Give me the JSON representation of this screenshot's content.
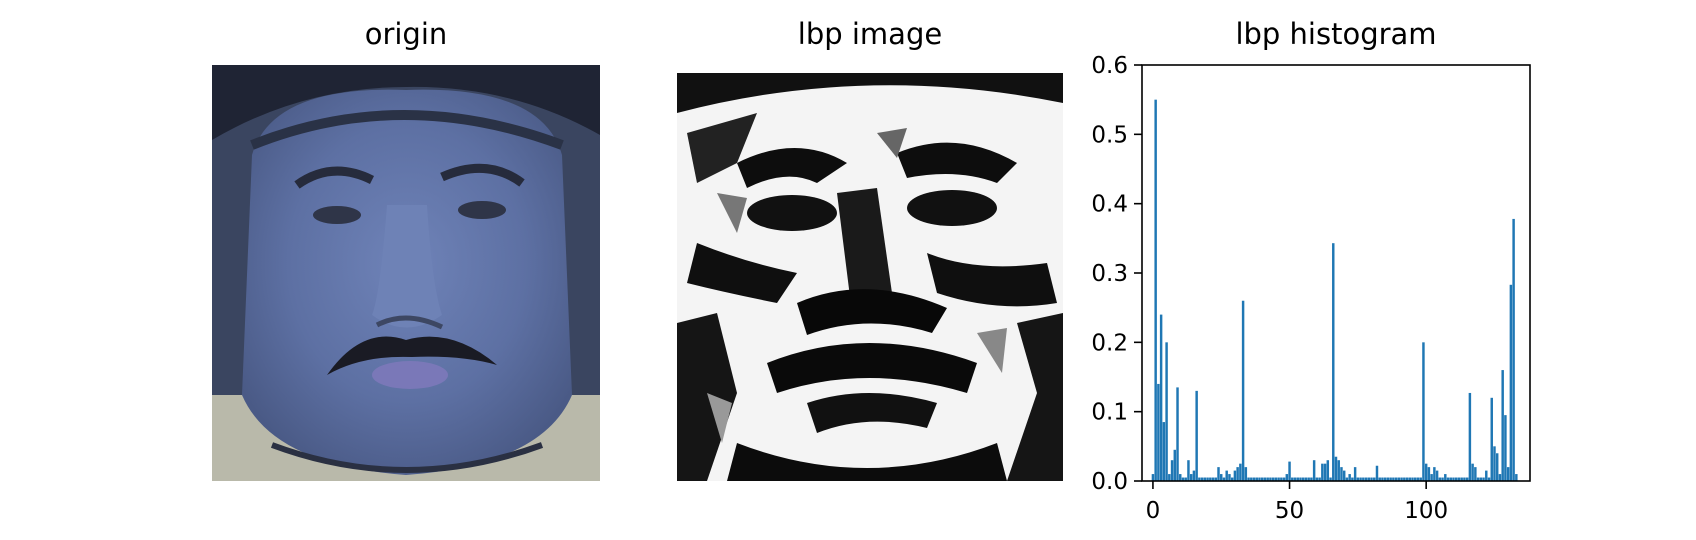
{
  "panels": {
    "origin_title": "origin",
    "lbp_title": "lbp image",
    "hist_title": "lbp histogram"
  },
  "chart_data": {
    "type": "bar",
    "title": "lbp histogram",
    "xlabel": "",
    "ylabel": "",
    "xlim": [
      -4,
      138
    ],
    "ylim": [
      0,
      0.6
    ],
    "xticks": [
      0,
      50,
      100
    ],
    "yticks": [
      "0.0",
      "0.1",
      "0.2",
      "0.3",
      "0.4",
      "0.5",
      "0.6"
    ],
    "color": "#1f77b4",
    "x": [
      0,
      1,
      2,
      3,
      4,
      5,
      6,
      7,
      8,
      9,
      10,
      11,
      12,
      13,
      14,
      15,
      16,
      17,
      18,
      19,
      20,
      21,
      22,
      23,
      24,
      25,
      26,
      27,
      28,
      29,
      30,
      31,
      32,
      33,
      34,
      35,
      36,
      37,
      38,
      39,
      40,
      41,
      42,
      43,
      44,
      45,
      46,
      47,
      48,
      49,
      50,
      51,
      52,
      53,
      54,
      55,
      56,
      57,
      58,
      59,
      60,
      61,
      62,
      63,
      64,
      65,
      66,
      67,
      68,
      69,
      70,
      71,
      72,
      73,
      74,
      75,
      76,
      77,
      78,
      79,
      80,
      81,
      82,
      83,
      84,
      85,
      86,
      87,
      88,
      89,
      90,
      91,
      92,
      93,
      94,
      95,
      96,
      97,
      98,
      99,
      100,
      101,
      102,
      103,
      104,
      105,
      106,
      107,
      108,
      109,
      110,
      111,
      112,
      113,
      114,
      115,
      116,
      117,
      118,
      119,
      120,
      121,
      122,
      123,
      124,
      125,
      126,
      127,
      128,
      129,
      130,
      131,
      132,
      133
    ],
    "values": [
      0.01,
      0.55,
      0.14,
      0.24,
      0.085,
      0.2,
      0.01,
      0.03,
      0.045,
      0.135,
      0.01,
      0.005,
      0.005,
      0.03,
      0.01,
      0.015,
      0.13,
      0.005,
      0.005,
      0.005,
      0.005,
      0.005,
      0.005,
      0.005,
      0.02,
      0.01,
      0.005,
      0.015,
      0.01,
      0.005,
      0.015,
      0.02,
      0.025,
      0.26,
      0.02,
      0.005,
      0.005,
      0.005,
      0.005,
      0.005,
      0.005,
      0.005,
      0.005,
      0.005,
      0.005,
      0.005,
      0.005,
      0.005,
      0.005,
      0.01,
      0.028,
      0.005,
      0.005,
      0.005,
      0.005,
      0.005,
      0.005,
      0.005,
      0.005,
      0.03,
      0.005,
      0.005,
      0.025,
      0.025,
      0.03,
      0.005,
      0.343,
      0.035,
      0.03,
      0.02,
      0.015,
      0.005,
      0.01,
      0.005,
      0.02,
      0.005,
      0.005,
      0.005,
      0.005,
      0.005,
      0.005,
      0.005,
      0.022,
      0.005,
      0.005,
      0.005,
      0.005,
      0.005,
      0.005,
      0.005,
      0.005,
      0.005,
      0.005,
      0.005,
      0.005,
      0.005,
      0.005,
      0.005,
      0.005,
      0.2,
      0.025,
      0.02,
      0.01,
      0.02,
      0.015,
      0.005,
      0.005,
      0.01,
      0.005,
      0.005,
      0.005,
      0.005,
      0.005,
      0.005,
      0.005,
      0.005,
      0.127,
      0.025,
      0.02,
      0.005,
      0.005,
      0.005,
      0.015,
      0.005,
      0.12,
      0.05,
      0.04,
      0.01,
      0.16,
      0.095,
      0.02,
      0.283,
      0.378,
      0.01
    ]
  }
}
